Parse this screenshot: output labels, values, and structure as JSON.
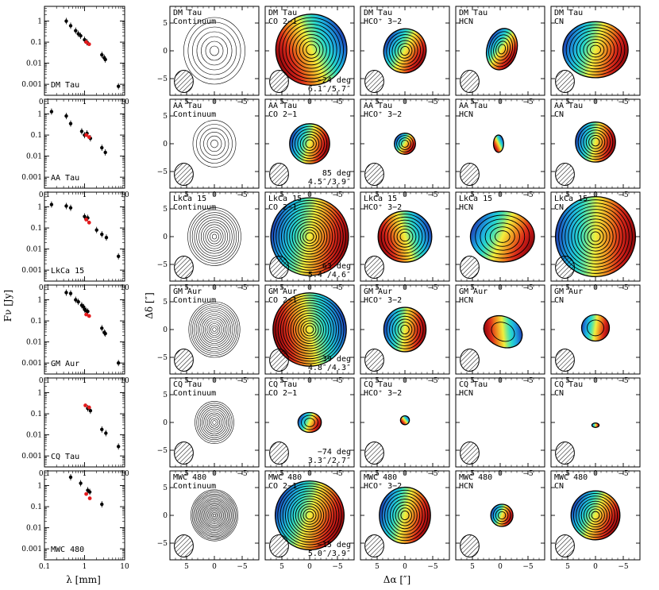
{
  "figure": {
    "sed_xlabel": "λ [mm]",
    "sed_ylabel": "Fν [Jy]",
    "map_xlabel": "Δα [″]",
    "map_ylabel": "Δδ [″]"
  },
  "chart_data": [
    {
      "type": "scatter",
      "panel": "sed",
      "xscale": "log",
      "yscale": "log",
      "xlim": [
        0.1,
        10
      ],
      "ylim": [
        0.0003,
        5
      ],
      "xticks": [
        "0.1",
        "1",
        "10"
      ],
      "yticks": [
        "1",
        "0.1",
        "0.01",
        "0.001"
      ],
      "xlabel": "λ [mm]",
      "ylabel": "Fν [Jy]",
      "series_colors": {
        "literature": "#000000",
        "this_work": "#e31a1c"
      },
      "sources": [
        {
          "name": "DM Tau",
          "black": [
            [
              0.35,
              1.0
            ],
            [
              0.45,
              0.6
            ],
            [
              0.6,
              0.35
            ],
            [
              0.7,
              0.25
            ],
            [
              0.8,
              0.2
            ],
            [
              1.0,
              0.13
            ],
            [
              1.15,
              0.1
            ],
            [
              2.7,
              0.025
            ],
            [
              3.1,
              0.018
            ],
            [
              3.3,
              0.015
            ],
            [
              7.0,
              0.0008
            ]
          ],
          "red": [
            [
              1.1,
              0.1
            ],
            [
              1.3,
              0.08
            ]
          ]
        },
        {
          "name": "AA Tau",
          "black": [
            [
              0.15,
              1.3
            ],
            [
              0.35,
              0.8
            ],
            [
              0.45,
              0.35
            ],
            [
              0.85,
              0.15
            ],
            [
              1.0,
              0.1
            ],
            [
              1.15,
              0.12
            ],
            [
              1.4,
              0.07
            ],
            [
              2.7,
              0.025
            ],
            [
              3.3,
              0.015
            ]
          ],
          "red": [
            [
              1.1,
              0.1
            ],
            [
              1.3,
              0.08
            ]
          ]
        },
        {
          "name": "LkCa 15",
          "black": [
            [
              0.15,
              1.3
            ],
            [
              0.35,
              1.1
            ],
            [
              0.45,
              0.9
            ],
            [
              1.0,
              0.35
            ],
            [
              1.2,
              0.3
            ],
            [
              2.0,
              0.08
            ],
            [
              2.7,
              0.05
            ],
            [
              3.5,
              0.035
            ],
            [
              7.0,
              0.0045
            ]
          ],
          "red": [
            [
              1.1,
              0.25
            ],
            [
              1.3,
              0.18
            ]
          ]
        },
        {
          "name": "GM Aur",
          "black": [
            [
              0.35,
              2.2
            ],
            [
              0.45,
              2.0
            ],
            [
              0.6,
              1.0
            ],
            [
              0.7,
              0.8
            ],
            [
              0.85,
              0.55
            ],
            [
              0.95,
              0.45
            ],
            [
              1.0,
              0.35
            ],
            [
              1.1,
              0.3
            ],
            [
              1.2,
              0.28
            ],
            [
              2.7,
              0.045
            ],
            [
              3.1,
              0.028
            ],
            [
              3.3,
              0.025
            ],
            [
              7.0,
              0.001
            ]
          ],
          "red": [
            [
              1.1,
              0.2
            ],
            [
              1.3,
              0.17
            ]
          ]
        },
        {
          "name": "CQ Tau",
          "black": [
            [
              1.2,
              0.18
            ],
            [
              1.4,
              0.14
            ],
            [
              2.7,
              0.018
            ],
            [
              3.4,
              0.012
            ],
            [
              7.0,
              0.0028
            ]
          ],
          "red": [
            [
              1.05,
              0.25
            ],
            [
              1.3,
              0.2
            ]
          ]
        },
        {
          "name": "MWC 480",
          "black": [
            [
              0.45,
              2.5
            ],
            [
              0.8,
              1.3
            ],
            [
              1.2,
              0.6
            ],
            [
              1.35,
              0.5
            ],
            [
              2.7,
              0.13
            ]
          ],
          "red": [
            [
              1.1,
              0.4
            ],
            [
              1.35,
              0.25
            ]
          ]
        }
      ]
    },
    {
      "type": "heatmap",
      "panel": "maps",
      "xlim": [
        8,
        -8
      ],
      "ylim": [
        -8,
        8
      ],
      "xticks": [
        "5",
        "0",
        "−5"
      ],
      "yticks": [
        "5",
        "0",
        "−5"
      ],
      "xlabel": "Δα [″]",
      "ylabel": "Δδ [″]",
      "colormap": [
        "#1f3fb0",
        "#1aa6e8",
        "#2ee6c2",
        "#f2ee3c",
        "#f08a1c",
        "#d81a1a",
        "#8a0a0a"
      ],
      "rows": [
        {
          "source": "DM Tau",
          "incl": "−24 deg",
          "beam": "6.1″/5.7″",
          "panels": [
            {
              "label": "DM Tau",
              "line": "Continuum"
            },
            {
              "label": "DM Tau",
              "line": "CO 2−1"
            },
            {
              "label": "DM Tau",
              "line": "HCO⁺ 3−2"
            },
            {
              "label": "DM Tau",
              "line": "HCN"
            },
            {
              "label": "DM Tau",
              "line": "CN"
            }
          ]
        },
        {
          "source": "AA Tau",
          "incl": "85 deg",
          "beam": "4.5″/3.9″",
          "panels": [
            {
              "label": "AA Tau",
              "line": "Continuum"
            },
            {
              "label": "AA Tau",
              "line": "CO 2−1"
            },
            {
              "label": "AA Tau",
              "line": "HCO⁺ 3−2"
            },
            {
              "label": "AA Tau",
              "line": "HCN"
            },
            {
              "label": "AA Tau",
              "line": "CN"
            }
          ]
        },
        {
          "source": "LkCa 15",
          "incl": "63 deg",
          "beam": "5.4″/4.6″",
          "panels": [
            {
              "label": "LkCa 15",
              "line": "Continuum"
            },
            {
              "label": "LkCa 15",
              "line": "CO 2−1"
            },
            {
              "label": "LkCa 15",
              "line": "HCO⁺ 3−2"
            },
            {
              "label": "LkCa 15",
              "line": "HCN"
            },
            {
              "label": "LkCa 15",
              "line": "CN"
            }
          ]
        },
        {
          "source": "GM Aur",
          "incl": "39 deg",
          "beam": "4.8″/4.3″",
          "panels": [
            {
              "label": "GM Aur",
              "line": "Continuum"
            },
            {
              "label": "GM Aur",
              "line": "CO 2−1"
            },
            {
              "label": "GM Aur",
              "line": "HCO⁺ 3−2"
            },
            {
              "label": "GM Aur",
              "line": "HCN"
            },
            {
              "label": "GM Aur",
              "line": "CN"
            }
          ]
        },
        {
          "source": "CQ Tau",
          "incl": "−74 deg",
          "beam": "3.3″/2.7″",
          "panels": [
            {
              "label": "CQ Tau",
              "line": "Continuum"
            },
            {
              "label": "CQ Tau",
              "line": "CO 2−1"
            },
            {
              "label": "CQ Tau",
              "line": "HCO⁺ 3−2"
            },
            {
              "label": "CQ Tau",
              "line": "HCN"
            },
            {
              "label": "CQ Tau",
              "line": "CN"
            }
          ]
        },
        {
          "source": "MWC 480",
          "incl": "−15 deg",
          "beam": "5.0″/3.9″",
          "panels": [
            {
              "label": "MWC 480",
              "line": "Continuum"
            },
            {
              "label": "MWC 480",
              "line": "CO 2−1"
            },
            {
              "label": "MWC 480",
              "line": "HCO⁺ 3−2"
            },
            {
              "label": "MWC 480",
              "line": "HCN"
            },
            {
              "label": "MWC 480",
              "line": "CN"
            }
          ]
        }
      ],
      "maps": [
        [
          {
            "kind": "cont",
            "n": 7,
            "r": 6.0
          },
          {
            "kind": "color",
            "n": 10,
            "r": 6.4,
            "ax": 1.0,
            "ay": 1.0,
            "ox": -0.3,
            "oy": 0.2,
            "rot": 0,
            "grad": -0.6
          },
          {
            "kind": "color",
            "n": 7,
            "r": 3.8,
            "ax": 1.0,
            "ay": 1.05,
            "ox": 0,
            "oy": 0,
            "rot": 20,
            "grad": 0.2
          },
          {
            "kind": "color",
            "n": 6,
            "r": 3.6,
            "ax": 0.75,
            "ay": 1.05,
            "ox": -0.3,
            "oy": 0.3,
            "rot": 15,
            "grad": 0.7
          },
          {
            "kind": "color",
            "n": 9,
            "r": 5.6,
            "ax": 1.05,
            "ay": 0.9,
            "ox": 0,
            "oy": 0.2,
            "rot": 0,
            "grad": 0.35
          }
        ],
        [
          {
            "kind": "cont",
            "n": 6,
            "r": 4.2
          },
          {
            "kind": "color",
            "n": 7,
            "r": 3.6,
            "ax": 1.0,
            "ay": 1.0,
            "ox": 0,
            "oy": 0,
            "rot": 0,
            "grad": 0.4
          },
          {
            "kind": "color",
            "n": 4,
            "r": 1.9,
            "ax": 1.0,
            "ay": 1.0,
            "ox": 0,
            "oy": 0,
            "rot": 0,
            "grad": 0.8
          },
          {
            "kind": "color",
            "n": 1,
            "r": 1.3,
            "ax": 0.7,
            "ay": 1.2,
            "ox": 0.3,
            "oy": 0,
            "rot": 0,
            "grad": -1.0
          },
          {
            "kind": "color",
            "n": 7,
            "r": 3.6,
            "ax": 1.0,
            "ay": 1.0,
            "ox": 0,
            "oy": 0.3,
            "rot": 0,
            "grad": 0.3
          }
        ],
        [
          {
            "kind": "cont",
            "n": 12,
            "r": 5.2
          },
          {
            "kind": "color",
            "n": 14,
            "r": 7.0,
            "ax": 1.0,
            "ay": 1.0,
            "ox": 0,
            "oy": 0,
            "rot": 0,
            "grad": 0.3
          },
          {
            "kind": "color",
            "n": 8,
            "r": 4.6,
            "ax": 1.05,
            "ay": 1.0,
            "ox": 0,
            "oy": 0,
            "rot": 0,
            "grad": -0.4
          },
          {
            "kind": "color",
            "n": 6,
            "r": 4.8,
            "ax": 1.2,
            "ay": 0.95,
            "ox": -0.4,
            "oy": 0,
            "rot": 0,
            "grad": 0.5
          },
          {
            "kind": "color",
            "n": 12,
            "r": 7.2,
            "ax": 1.0,
            "ay": 1.0,
            "ox": 0,
            "oy": 0,
            "rot": 0,
            "grad": 0.1
          }
        ],
        [
          {
            "kind": "cont",
            "n": 14,
            "r": 5.0
          },
          {
            "kind": "color",
            "n": 14,
            "r": 6.6,
            "ax": 1.0,
            "ay": 1.0,
            "ox": 0,
            "oy": 0,
            "rot": 0,
            "grad": -0.3
          },
          {
            "kind": "color",
            "n": 7,
            "r": 3.8,
            "ax": 1.0,
            "ay": 1.05,
            "ox": 0,
            "oy": 0,
            "rot": 0,
            "grad": 0.2
          },
          {
            "kind": "color",
            "n": 2,
            "r": 3.0,
            "ax": 1.2,
            "ay": 0.9,
            "ox": -0.5,
            "oy": -0.4,
            "rot": 25,
            "grad": -0.6
          },
          {
            "kind": "color",
            "n": 2,
            "r": 2.5,
            "ax": 1.0,
            "ay": 0.95,
            "ox": 0,
            "oy": 0.3,
            "rot": 0,
            "grad": 0.2
          }
        ],
        [
          {
            "kind": "cont",
            "n": 11,
            "r": 3.8
          },
          {
            "kind": "color",
            "n": 3,
            "r": 2.1,
            "ax": 1.0,
            "ay": 0.85,
            "ox": 0,
            "oy": 0,
            "rot": 0,
            "grad": 0.5
          },
          {
            "kind": "color",
            "n": 1,
            "r": 0.8,
            "ax": 1.0,
            "ay": 1.0,
            "ox": 0,
            "oy": 0.4,
            "rot": 0,
            "grad": -1.0
          },
          {
            "kind": "none"
          },
          {
            "kind": "color",
            "n": 1,
            "r": 0.5,
            "ax": 1.3,
            "ay": 0.8,
            "ox": 0,
            "oy": -0.5,
            "rot": 0,
            "grad": 0.0
          }
        ],
        [
          {
            "kind": "cont",
            "n": 18,
            "r": 4.6
          },
          {
            "kind": "color",
            "n": 13,
            "r": 6.2,
            "ax": 1.0,
            "ay": 1.0,
            "ox": 0,
            "oy": 0,
            "rot": 0,
            "grad": 0.5
          },
          {
            "kind": "color",
            "n": 9,
            "r": 4.6,
            "ax": 1.0,
            "ay": 1.1,
            "ox": 0,
            "oy": 0,
            "rot": 0,
            "grad": 0.4
          },
          {
            "kind": "color",
            "n": 4,
            "r": 2.0,
            "ax": 1.0,
            "ay": 1.0,
            "ox": -0.3,
            "oy": 0,
            "rot": 0,
            "grad": 0.5
          },
          {
            "kind": "color",
            "n": 9,
            "r": 4.4,
            "ax": 1.0,
            "ay": 1.0,
            "ox": 0,
            "oy": 0,
            "rot": 0,
            "grad": 0.6
          }
        ]
      ]
    }
  ]
}
